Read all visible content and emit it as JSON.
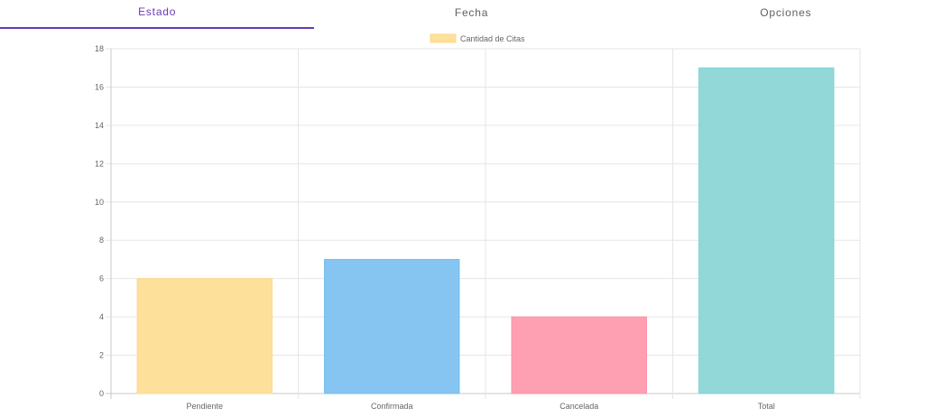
{
  "tabs": [
    {
      "label": "Estado",
      "active": true
    },
    {
      "label": "Fecha",
      "active": false
    },
    {
      "label": "Opciones",
      "active": false
    }
  ],
  "chart_data": {
    "type": "bar",
    "categories": [
      "Pendiente",
      "Confirmada",
      "Cancelada",
      "Total"
    ],
    "series": [
      {
        "name": "Cantidad de Citas",
        "values": [
          6,
          7,
          4,
          17
        ]
      }
    ],
    "colors": [
      "#fde09a",
      "#86c5f2",
      "#fea0b2",
      "#93d8d9"
    ],
    "border_colors": [
      "#fdd88a",
      "#72bdf0",
      "#fe8ea3",
      "#80d1d2"
    ],
    "legend_color": "#fde09a",
    "yticks": [
      0,
      2,
      4,
      6,
      8,
      10,
      12,
      14,
      16,
      18
    ],
    "ylim": [
      0,
      18
    ],
    "grid": true,
    "legend_position": "top"
  }
}
